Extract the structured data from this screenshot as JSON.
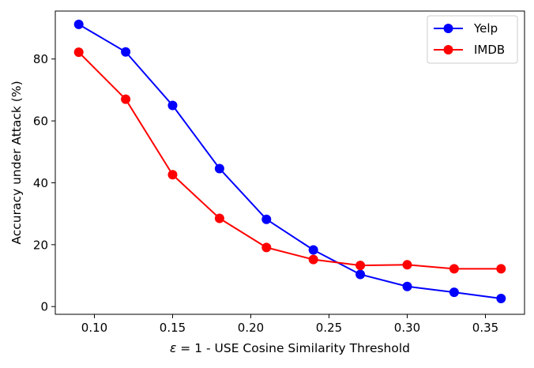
{
  "chart_data": {
    "type": "line",
    "xlabel_symbol": "ε",
    "xlabel_text": " = 1 - USE Cosine Similarity Threshold",
    "ylabel": "Accuracy under Attack (%)",
    "xlim": [
      0.075,
      0.375
    ],
    "ylim": [
      -2.5,
      95.5
    ],
    "xticks": [
      0.1,
      0.15,
      0.2,
      0.25,
      0.3,
      0.35
    ],
    "xtick_labels": [
      "0.10",
      "0.15",
      "0.20",
      "0.25",
      "0.30",
      "0.35"
    ],
    "yticks": [
      0,
      20,
      40,
      60,
      80
    ],
    "ytick_labels": [
      "0",
      "20",
      "40",
      "60",
      "80"
    ],
    "grid": false,
    "legend_position": "top-right",
    "x": [
      0.09,
      0.12,
      0.15,
      0.18,
      0.21,
      0.24,
      0.27,
      0.3,
      0.33,
      0.36
    ],
    "series": [
      {
        "name": "Yelp",
        "color": "#0000ff",
        "values": [
          91.2,
          82.3,
          65.0,
          44.6,
          28.2,
          18.3,
          10.4,
          6.5,
          4.6,
          2.6
        ]
      },
      {
        "name": "IMDB",
        "color": "#ff0000",
        "values": [
          82.2,
          67.0,
          42.6,
          28.5,
          19.1,
          15.2,
          13.3,
          13.5,
          12.2,
          12.2
        ]
      }
    ]
  }
}
